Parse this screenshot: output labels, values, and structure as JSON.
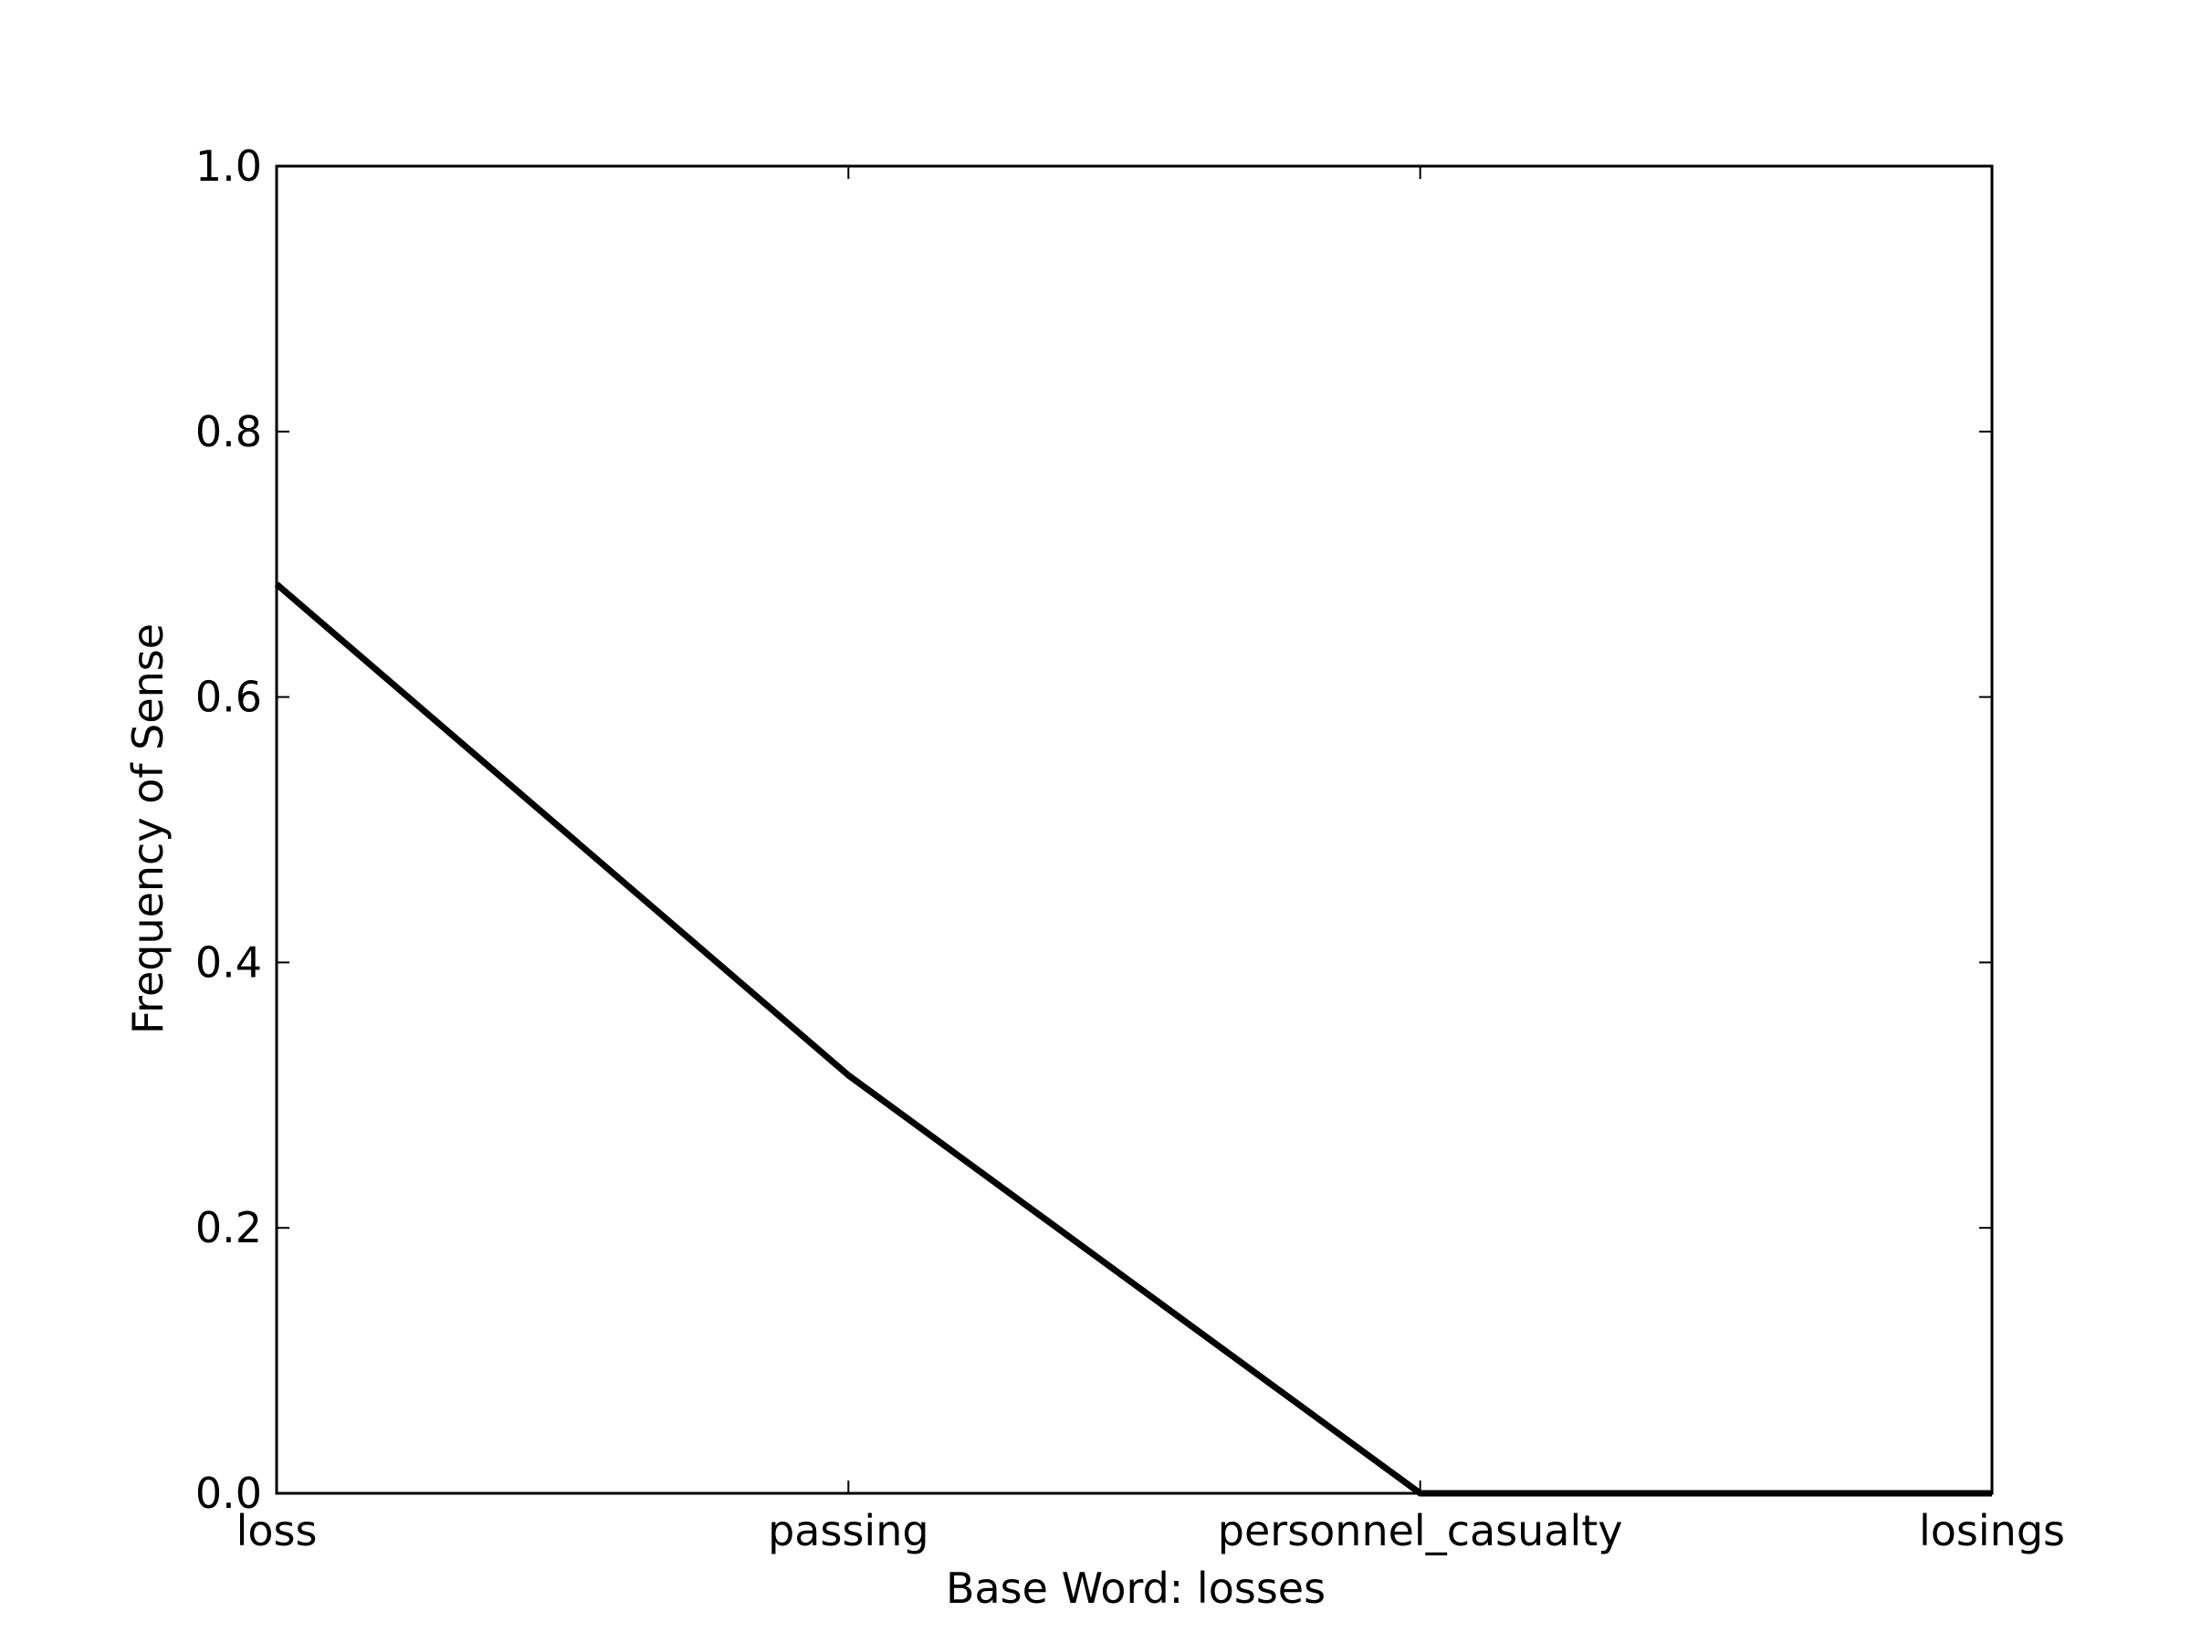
{
  "chart_data": {
    "type": "line",
    "title": "",
    "xlabel": "Base Word: losses",
    "ylabel": "Frequency of Sense",
    "categories": [
      "loss",
      "passing",
      "personnel_casualty",
      "losings"
    ],
    "series": [
      {
        "values": [
          0.685,
          0.315,
          0.0,
          0.0
        ]
      }
    ],
    "ylim": [
      0.0,
      1.0
    ],
    "yticks": [
      "0.0",
      "0.2",
      "0.4",
      "0.6",
      "0.8",
      "1.0"
    ],
    "grid": false,
    "legend": "none",
    "colors": {
      "line": "#000000",
      "axes": "#000000",
      "background": "#ffffff"
    }
  }
}
